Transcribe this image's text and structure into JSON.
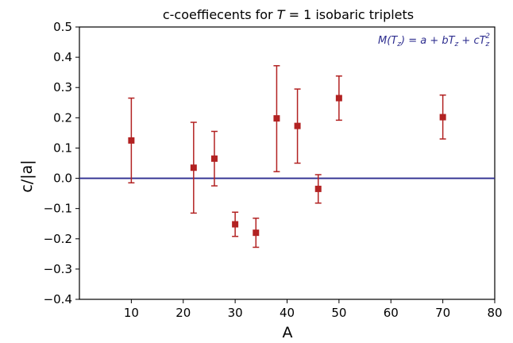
{
  "chart_data": {
    "type": "scatter",
    "title": "c-coeffiecents for T = 1 isobaric triplets",
    "title_parts": {
      "before": "c-coeffiecents for ",
      "var": "T",
      "after": " = 1 isobaric triplets"
    },
    "xlabel": "A",
    "ylabel": "c/|a|",
    "xlim": [
      0,
      80
    ],
    "ylim": [
      -0.4,
      0.5
    ],
    "xticks": [
      10,
      20,
      30,
      40,
      50,
      60,
      70,
      80
    ],
    "yticks": [
      -0.4,
      -0.3,
      -0.2,
      -0.1,
      0.0,
      0.1,
      0.2,
      0.3,
      0.4,
      0.5
    ],
    "xtick_labels": [
      "10",
      "20",
      "30",
      "40",
      "50",
      "60",
      "70",
      "80"
    ],
    "ytick_labels": [
      "−0.4",
      "−0.3",
      "−0.2",
      "−0.1",
      "0.0",
      "0.1",
      "0.2",
      "0.3",
      "0.4",
      "0.5"
    ],
    "grid": false,
    "annotation": "M(Tz) = a + bTz + cTz^2",
    "annotation_color": "#2e2e8f",
    "reference_line": {
      "y": 0.0,
      "color": "#2e2e8f"
    },
    "series": [
      {
        "color": "#b22222",
        "marker": "square",
        "points": [
          {
            "x": 10,
            "y": 0.125,
            "ylow": -0.015,
            "yhigh": 0.265
          },
          {
            "x": 22,
            "y": 0.035,
            "ylow": -0.115,
            "yhigh": 0.185
          },
          {
            "x": 26,
            "y": 0.065,
            "ylow": -0.025,
            "yhigh": 0.155
          },
          {
            "x": 30,
            "y": -0.152,
            "ylow": -0.192,
            "yhigh": -0.112
          },
          {
            "x": 34,
            "y": -0.18,
            "ylow": -0.228,
            "yhigh": -0.132
          },
          {
            "x": 38,
            "y": 0.198,
            "ylow": 0.022,
            "yhigh": 0.372
          },
          {
            "x": 42,
            "y": 0.173,
            "ylow": 0.05,
            "yhigh": 0.295
          },
          {
            "x": 46,
            "y": -0.035,
            "ylow": -0.082,
            "yhigh": 0.012
          },
          {
            "x": 50,
            "y": 0.265,
            "ylow": 0.192,
            "yhigh": 0.338
          },
          {
            "x": 70,
            "y": 0.202,
            "ylow": 0.13,
            "yhigh": 0.275
          }
        ]
      }
    ]
  }
}
